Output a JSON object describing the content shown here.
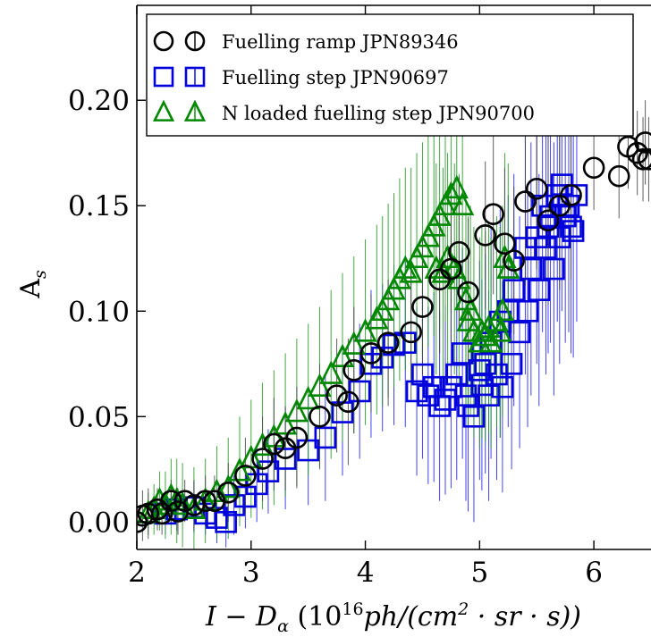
{
  "chart_data": {
    "type": "scatter",
    "title": "",
    "xlabel_main": "I − D",
    "xlabel_sub": "α",
    "xlabel_units_pre": " (10",
    "xlabel_units_exp": "16",
    "xlabel_units_mid": "ph/(cm",
    "xlabel_units_exp2": "2",
    "xlabel_units_post": " · sr · s))",
    "ylabel_main": "A",
    "ylabel_sub": "s",
    "xlim": [
      2.0,
      6.5
    ],
    "ylim": [
      -0.013,
      0.245
    ],
    "x_ticks": [
      2,
      3,
      4,
      5,
      6
    ],
    "y_ticks": [
      0.0,
      0.05,
      0.1,
      0.15,
      0.2
    ],
    "x_tick_labels": [
      "2",
      "3",
      "4",
      "5",
      "6"
    ],
    "y_tick_labels": [
      "0.00",
      "0.05",
      "0.10",
      "0.15",
      "0.20"
    ],
    "legend_position": "top-right",
    "series": [
      {
        "name": "Fuelling ramp JPN89346",
        "marker": "circle",
        "color": "#000000",
        "errcolor": "#444444",
        "x": [
          2.0,
          2.05,
          2.1,
          2.18,
          2.22,
          2.3,
          2.36,
          2.42,
          2.5,
          2.6,
          2.68,
          2.8,
          2.95,
          3.1,
          3.2,
          3.3,
          3.4,
          3.6,
          3.75,
          3.85,
          3.9,
          4.05,
          4.2,
          4.4,
          4.5,
          4.65,
          4.75,
          4.82,
          4.9,
          5.05,
          5.12,
          5.22,
          5.3,
          5.4,
          5.5,
          5.6,
          5.7,
          5.8,
          6.0,
          6.22,
          6.3,
          6.38,
          6.43,
          6.45,
          6.48
        ],
        "y": [
          0.0,
          0.003,
          0.004,
          0.006,
          0.004,
          0.01,
          0.005,
          0.01,
          0.008,
          0.01,
          0.01,
          0.014,
          0.022,
          0.03,
          0.037,
          0.035,
          0.04,
          0.05,
          0.06,
          0.057,
          0.072,
          0.08,
          0.085,
          0.09,
          0.102,
          0.115,
          0.12,
          0.128,
          0.109,
          0.136,
          0.146,
          0.132,
          0.124,
          0.152,
          0.158,
          0.143,
          0.15,
          0.155,
          0.168,
          0.164,
          0.178,
          0.175,
          0.172,
          0.18,
          0.172
        ],
        "err": [
          0.012,
          0.012,
          0.012,
          0.01,
          0.01,
          0.01,
          0.011,
          0.01,
          0.012,
          0.012,
          0.012,
          0.014,
          0.018,
          0.02,
          0.022,
          0.02,
          0.024,
          0.025,
          0.027,
          0.03,
          0.03,
          0.028,
          0.03,
          0.032,
          0.032,
          0.035,
          0.035,
          0.036,
          0.035,
          0.035,
          0.038,
          0.036,
          0.035,
          0.04,
          0.038,
          0.04,
          0.04,
          0.04,
          0.02,
          0.02,
          0.02,
          0.02,
          0.02,
          0.02,
          0.02
        ]
      },
      {
        "name": "Fuelling step JPN90697",
        "marker": "square",
        "color": "#0000dd",
        "errcolor": "#2222ee",
        "x": [
          2.25,
          2.35,
          2.5,
          2.6,
          2.7,
          2.78,
          2.85,
          2.95,
          3.05,
          3.15,
          3.3,
          3.5,
          3.65,
          3.8,
          3.95,
          4.05,
          4.15,
          4.25,
          4.35,
          4.45,
          4.5,
          4.55,
          4.6,
          4.65,
          4.7,
          4.75,
          4.8,
          4.85,
          4.88,
          4.9,
          4.95,
          5.0,
          5.02,
          5.05,
          5.08,
          5.1,
          5.15,
          5.18,
          5.2,
          5.25,
          5.28,
          5.3,
          5.35,
          5.4,
          5.42,
          5.45,
          5.5,
          5.52,
          5.55,
          5.58,
          5.6,
          5.62,
          5.65,
          5.68,
          5.7,
          5.72,
          5.75,
          5.78,
          5.8,
          5.82,
          5.85
        ],
        "y": [
          0.004,
          0.006,
          0.007,
          0.004,
          0.002,
          0.0,
          0.008,
          0.012,
          0.018,
          0.024,
          0.03,
          0.034,
          0.04,
          0.052,
          0.062,
          0.075,
          0.078,
          0.084,
          0.085,
          0.062,
          0.07,
          0.06,
          0.064,
          0.055,
          0.058,
          0.064,
          0.07,
          0.08,
          0.06,
          0.055,
          0.05,
          0.072,
          0.065,
          0.075,
          0.06,
          0.085,
          0.07,
          0.095,
          0.064,
          0.1,
          0.075,
          0.11,
          0.09,
          0.13,
          0.1,
          0.12,
          0.135,
          0.11,
          0.15,
          0.13,
          0.14,
          0.145,
          0.12,
          0.155,
          0.135,
          0.16,
          0.145,
          0.15,
          0.14,
          0.138,
          0.155
        ],
        "err": [
          0.01,
          0.01,
          0.012,
          0.01,
          0.012,
          0.012,
          0.014,
          0.015,
          0.018,
          0.02,
          0.024,
          0.026,
          0.03,
          0.03,
          0.032,
          0.035,
          0.035,
          0.038,
          0.04,
          0.04,
          0.04,
          0.042,
          0.045,
          0.045,
          0.045,
          0.048,
          0.05,
          0.05,
          0.05,
          0.05,
          0.05,
          0.052,
          0.05,
          0.052,
          0.05,
          0.055,
          0.05,
          0.055,
          0.05,
          0.055,
          0.05,
          0.055,
          0.055,
          0.06,
          0.055,
          0.06,
          0.06,
          0.055,
          0.06,
          0.06,
          0.06,
          0.06,
          0.06,
          0.06,
          0.06,
          0.06,
          0.06,
          0.06,
          0.06,
          0.06,
          0.06
        ]
      },
      {
        "name": "N loaded fuelling step JPN90700",
        "marker": "triangle",
        "color": "#008800",
        "errcolor": "#229922",
        "x": [
          2.1,
          2.15,
          2.2,
          2.25,
          2.3,
          2.35,
          2.4,
          2.5,
          2.6,
          2.7,
          2.8,
          2.9,
          3.0,
          3.1,
          3.2,
          3.3,
          3.4,
          3.5,
          3.6,
          3.7,
          3.8,
          3.9,
          4.0,
          4.1,
          4.15,
          4.2,
          4.25,
          4.3,
          4.35,
          4.4,
          4.45,
          4.5,
          4.55,
          4.6,
          4.62,
          4.65,
          4.68,
          4.7,
          4.72,
          4.75,
          4.78,
          4.8,
          4.82,
          4.85,
          4.88,
          4.9,
          4.92,
          4.95,
          5.0,
          5.02,
          5.05,
          5.08,
          5.1,
          5.15,
          5.18,
          5.2,
          5.22,
          5.25
        ],
        "y": [
          0.004,
          0.006,
          0.01,
          0.008,
          0.012,
          0.01,
          0.008,
          0.006,
          0.01,
          0.014,
          0.016,
          0.024,
          0.03,
          0.036,
          0.04,
          0.046,
          0.052,
          0.058,
          0.064,
          0.07,
          0.078,
          0.084,
          0.09,
          0.096,
          0.1,
          0.105,
          0.11,
          0.115,
          0.12,
          0.118,
          0.125,
          0.13,
          0.135,
          0.14,
          0.12,
          0.145,
          0.118,
          0.15,
          0.125,
          0.155,
          0.12,
          0.158,
          0.115,
          0.15,
          0.105,
          0.095,
          0.1,
          0.09,
          0.085,
          0.09,
          0.088,
          0.092,
          0.085,
          0.095,
          0.09,
          0.1,
          0.125,
          0.12
        ],
        "err": [
          0.01,
          0.012,
          0.014,
          0.016,
          0.018,
          0.02,
          0.02,
          0.02,
          0.02,
          0.022,
          0.024,
          0.026,
          0.028,
          0.03,
          0.032,
          0.034,
          0.035,
          0.036,
          0.038,
          0.04,
          0.04,
          0.042,
          0.044,
          0.045,
          0.045,
          0.046,
          0.046,
          0.048,
          0.048,
          0.05,
          0.05,
          0.05,
          0.052,
          0.052,
          0.05,
          0.054,
          0.05,
          0.055,
          0.05,
          0.055,
          0.05,
          0.055,
          0.05,
          0.055,
          0.05,
          0.05,
          0.05,
          0.05,
          0.05,
          0.05,
          0.05,
          0.05,
          0.05,
          0.05,
          0.05,
          0.05,
          0.05,
          0.05
        ]
      }
    ]
  }
}
